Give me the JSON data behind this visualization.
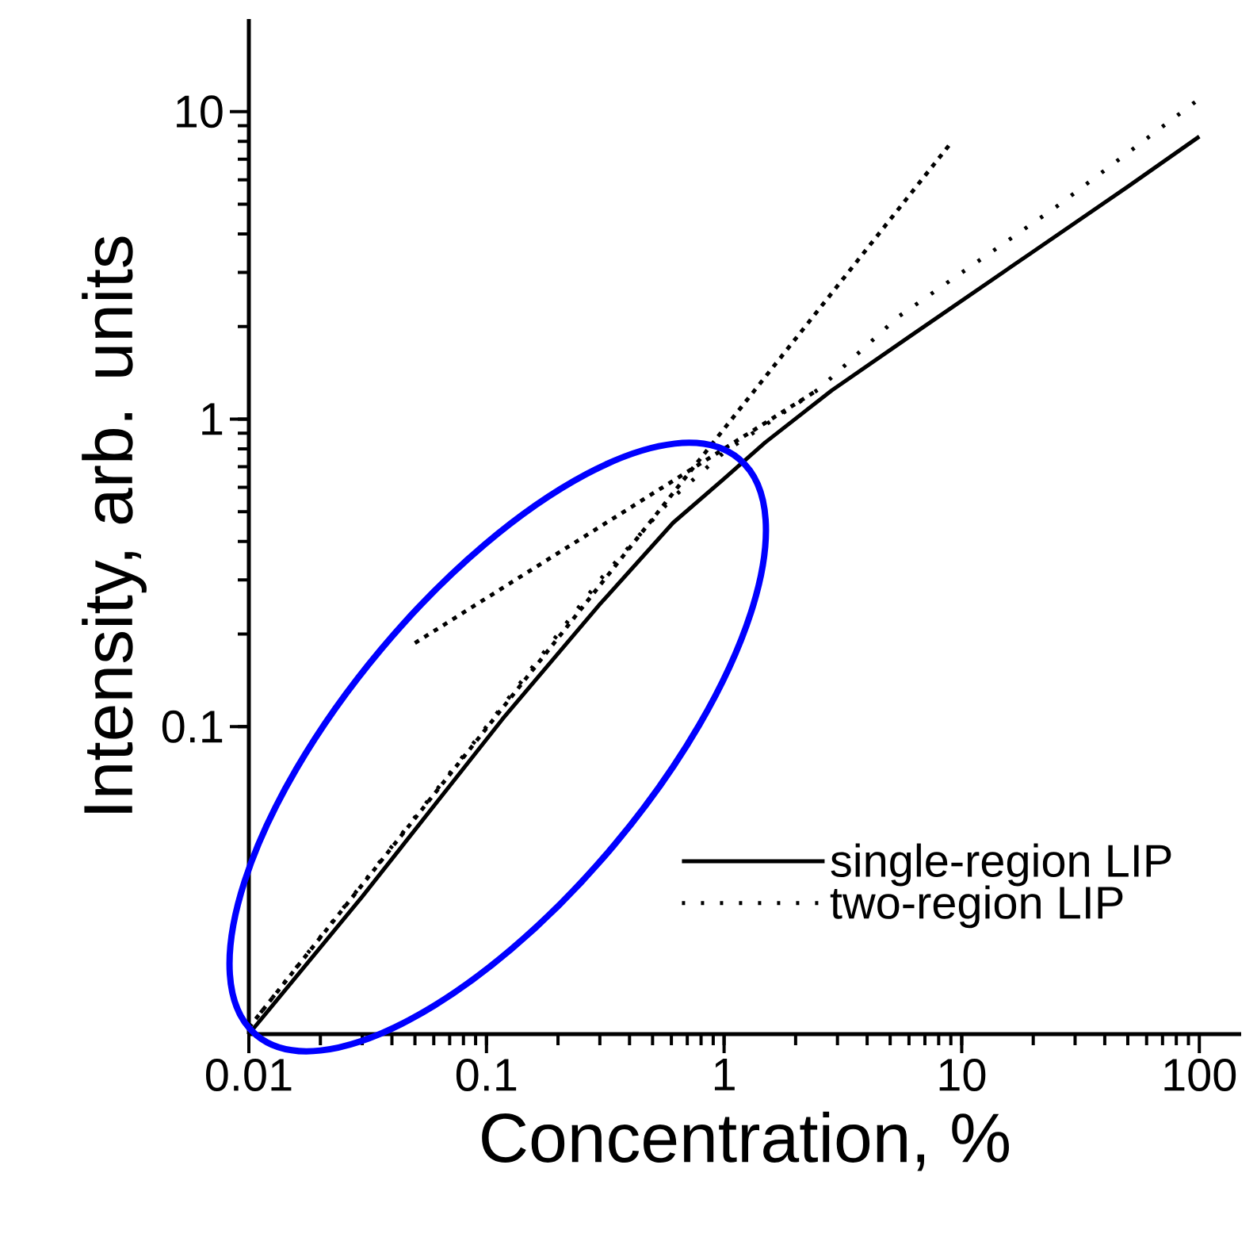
{
  "chart_data": {
    "type": "line",
    "xlabel": "Concentration, %",
    "ylabel": "Intensity, arb. units",
    "log": "xy",
    "legend": "bottom right",
    "xlim": [
      0.01,
      150
    ],
    "ylim": [
      0.01,
      20
    ],
    "xticks": [
      0.01,
      0.1,
      1,
      10,
      100
    ],
    "yticks": [
      0.1,
      1,
      10
    ],
    "series": [
      {
        "name": "single-region LIP",
        "color": "#000000",
        "line_style": "solid",
        "x": [
          0.01,
          0.03,
          0.117,
          0.3,
          0.61,
          1,
          1.49,
          2.84,
          6,
          19.4,
          50,
          100
        ],
        "values": [
          0.01,
          0.028,
          0.106,
          0.25,
          0.46,
          0.64,
          0.84,
          1.24,
          1.85,
          3.45,
          5.7,
          8.3
        ]
      },
      {
        "name": "two-region LIP",
        "color": "#000000",
        "line_style": "dotted",
        "x": [
          0.01,
          0.1,
          0.3,
          0.6,
          1,
          2.5,
          5.4,
          25,
          100
        ],
        "values": [
          0.0105,
          0.1,
          0.3,
          0.55,
          0.78,
          1.25,
          2.15,
          4.9,
          11
        ]
      },
      {
        "color": "#000000",
        "line_style": "dashed",
        "x": [
          0.01,
          9
        ],
        "values": [
          0.0105,
          7.9
        ]
      },
      {
        "color": "#000000",
        "line_style": "dashed",
        "x": [
          0.05,
          2.5
        ],
        "values": [
          0.187,
          1.25
        ]
      }
    ]
  }
}
